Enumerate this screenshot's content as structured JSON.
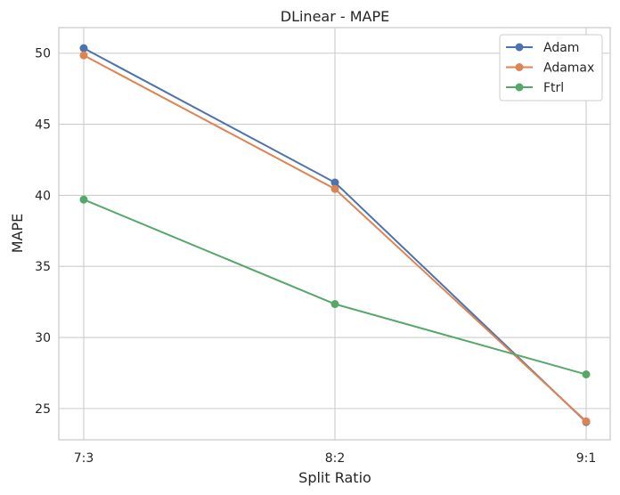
{
  "chart_data": {
    "type": "line",
    "title": "DLinear - MAPE",
    "xlabel": "Split Ratio",
    "ylabel": "MAPE",
    "categories": [
      "7:3",
      "8:2",
      "9:1"
    ],
    "ylim": [
      22.8,
      51.8
    ],
    "yticks": [
      25,
      30,
      35,
      40,
      45,
      50
    ],
    "grid": true,
    "legend_position": "top-right",
    "series": [
      {
        "name": "Adam",
        "values": [
          50.35,
          40.9,
          24.05
        ],
        "color": "#4c72b0"
      },
      {
        "name": "Adamax",
        "values": [
          49.85,
          40.45,
          24.1
        ],
        "color": "#dd8452"
      },
      {
        "name": "Ftrl",
        "values": [
          39.7,
          32.35,
          27.4
        ],
        "color": "#55a868"
      }
    ]
  }
}
